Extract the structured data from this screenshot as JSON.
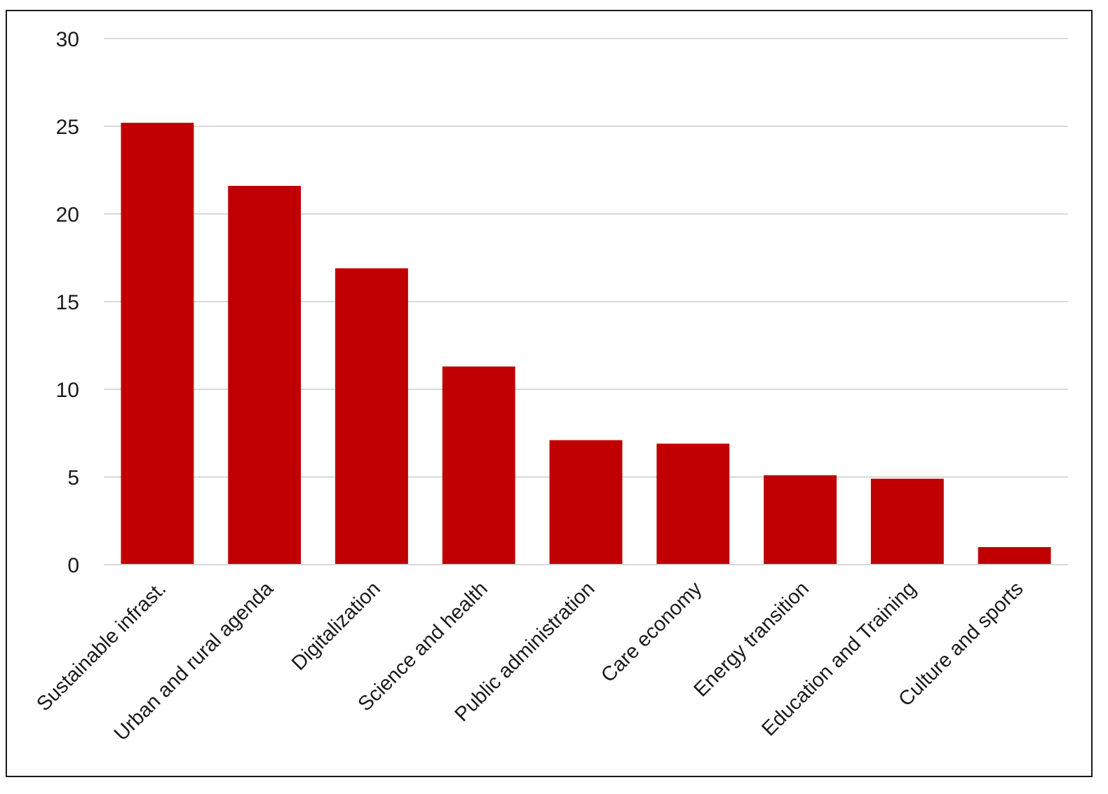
{
  "chart_data": {
    "type": "bar",
    "title": "",
    "xlabel": "",
    "ylabel": "",
    "categories": [
      "Sustainable infrast.",
      "Urban and rural agenda",
      "Digitalization",
      "Science and health",
      "Public administration",
      "Care economy",
      "Energy transition",
      "Education and Training",
      "Culture and sports"
    ],
    "values": [
      25.2,
      21.6,
      16.9,
      11.3,
      7.1,
      6.9,
      5.1,
      4.9,
      1.0
    ],
    "ylim": [
      0,
      30
    ],
    "yticks": [
      "0",
      "5",
      "10",
      "15",
      "20",
      "25",
      "30"
    ],
    "grid": true,
    "legend": "none",
    "bar_color": "#c00000",
    "grid_color": "#d9d9d9"
  }
}
